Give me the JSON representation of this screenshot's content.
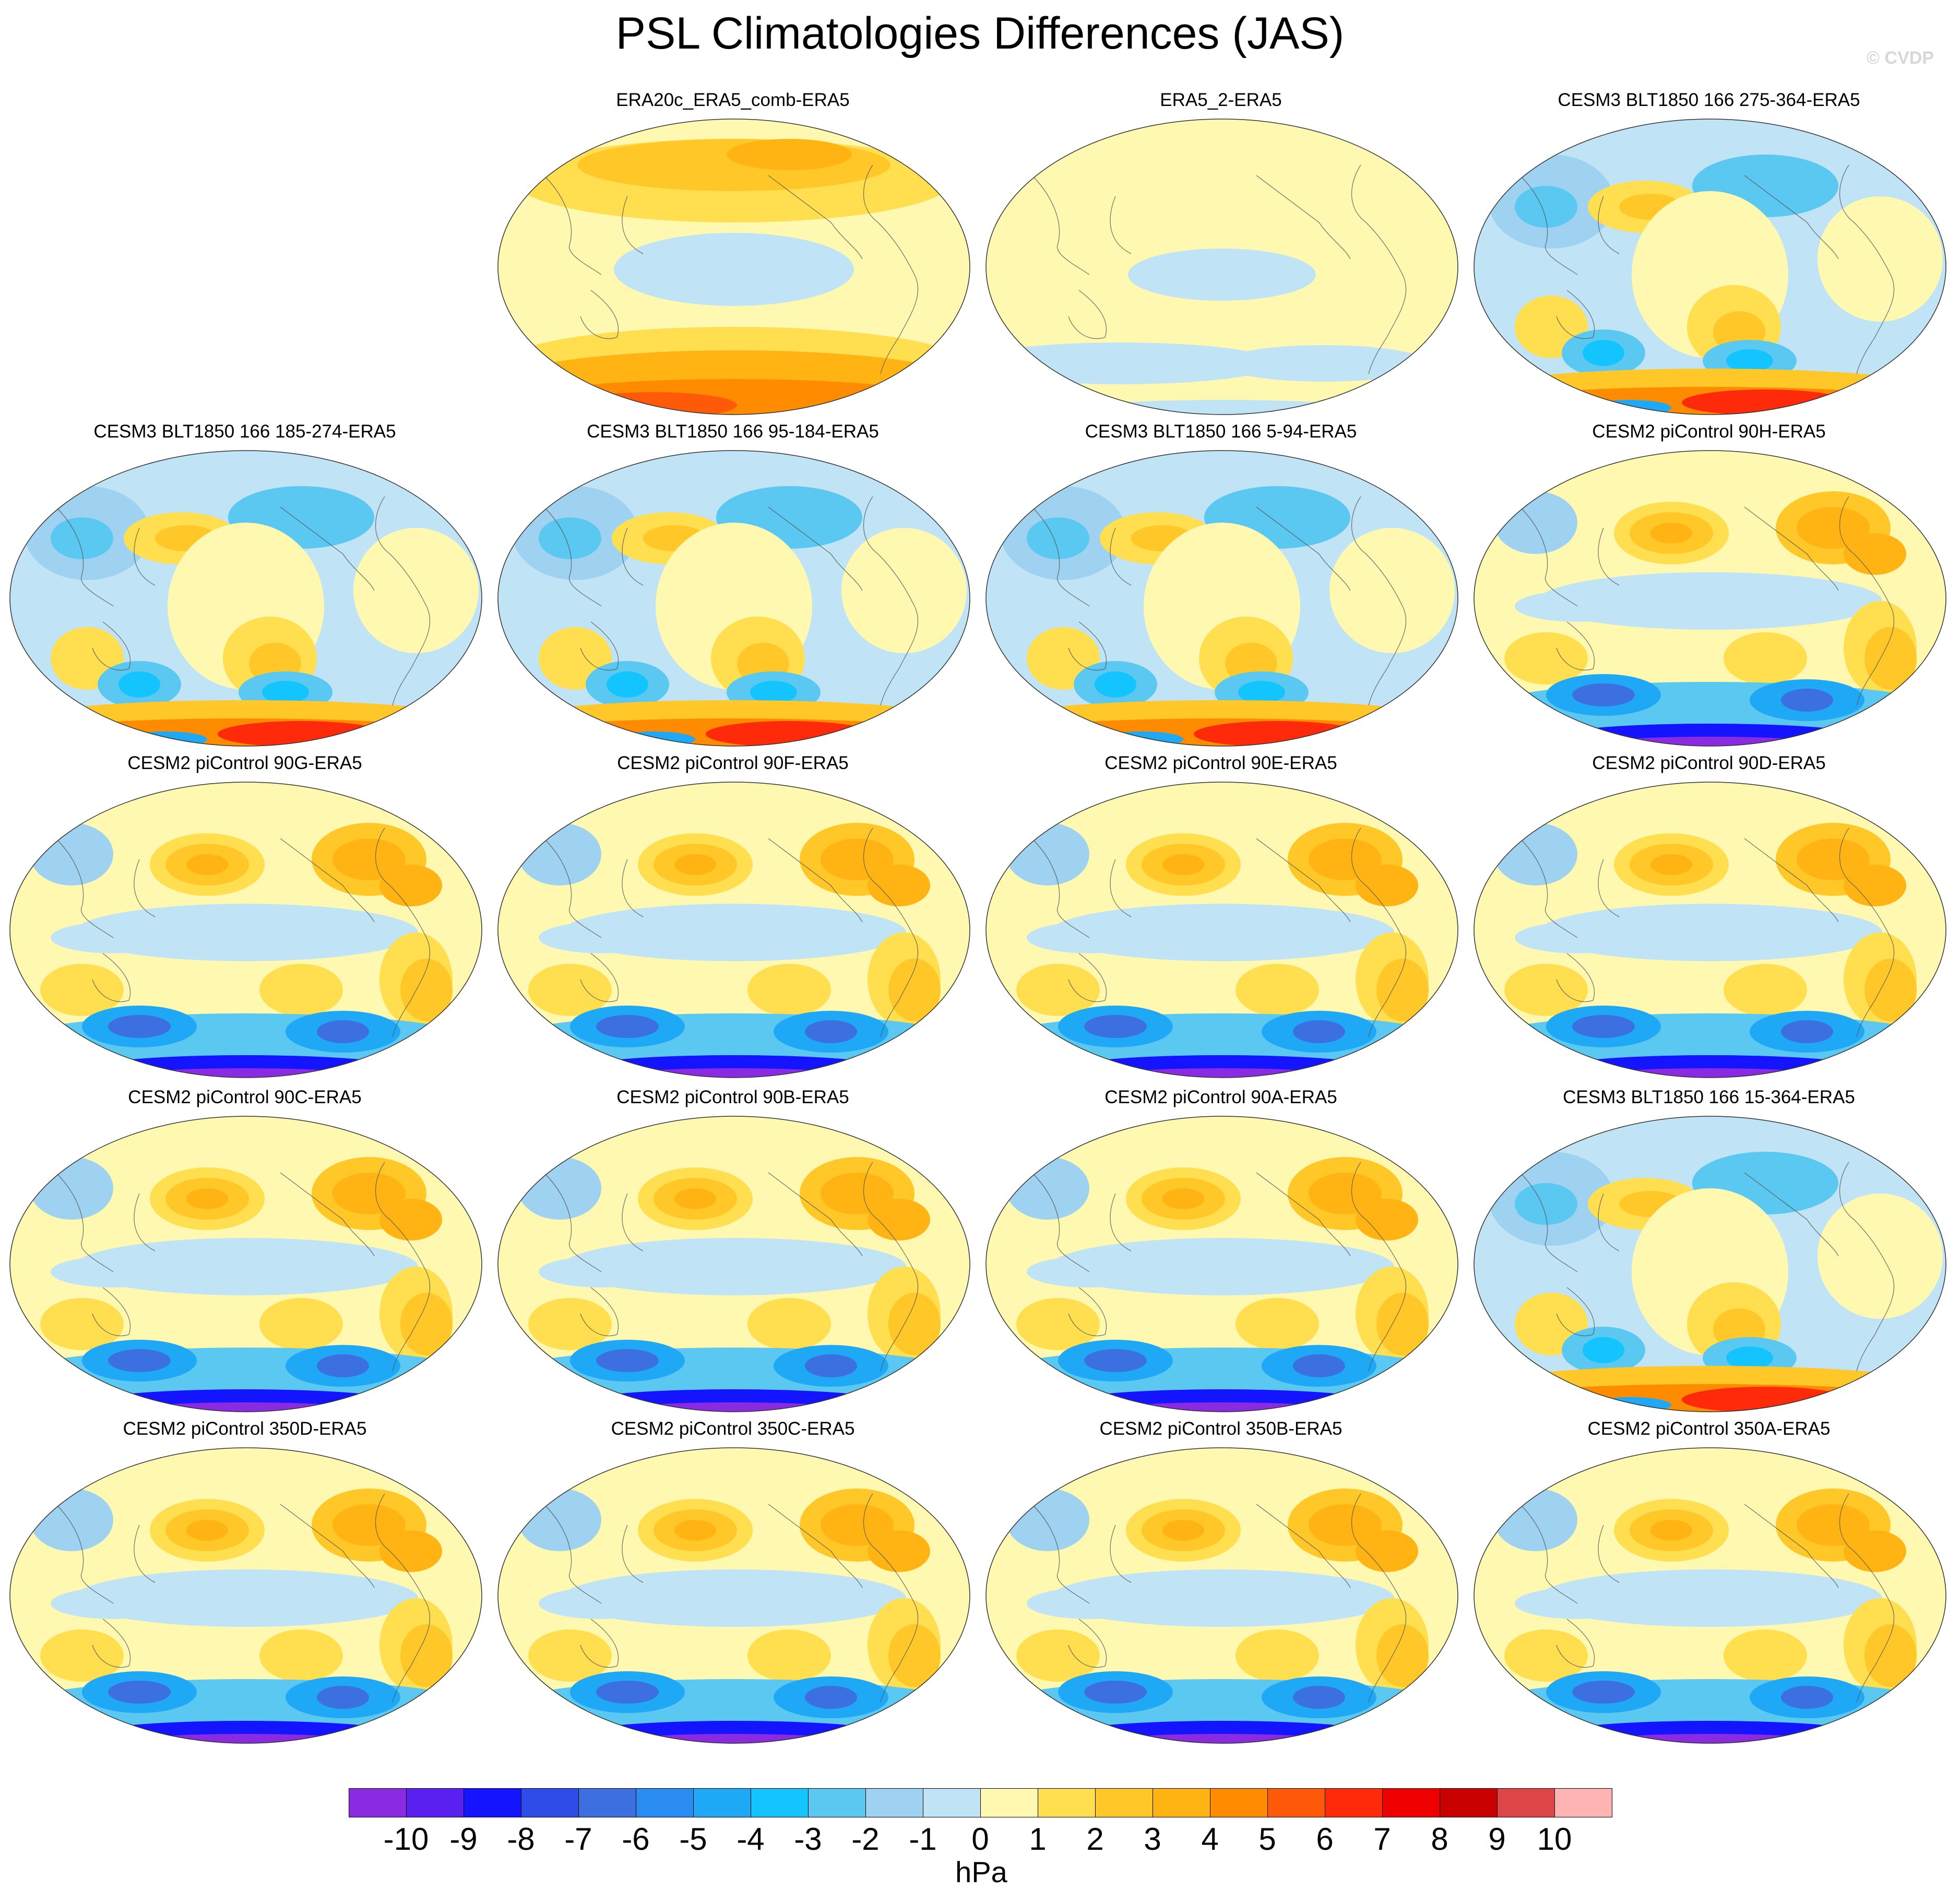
{
  "title": "PSL Climatologies Differences (JAS)",
  "watermark": "© CVDP",
  "units": "hPa",
  "colorbar": {
    "levels": [
      "-10",
      "-9",
      "-8",
      "-7",
      "-6",
      "-5",
      "-4",
      "-3",
      "-2",
      "-1",
      "0",
      "1",
      "2",
      "3",
      "4",
      "5",
      "6",
      "7",
      "8",
      "9",
      "10"
    ],
    "colors": [
      "#8a2be2",
      "#5a20f0",
      "#1414ff",
      "#2e4ce8",
      "#3c70e0",
      "#2a8cf2",
      "#1ea8f5",
      "#14c4ff",
      "#5ac8f0",
      "#9ed2f0",
      "#c0e4f6",
      "#fff8b0",
      "#ffde50",
      "#ffc828",
      "#ffb414",
      "#ff8c00",
      "#ff5a0a",
      "#ff2a0a",
      "#ee0000",
      "#c80000",
      "#dc4646",
      "#ffb4b4"
    ]
  },
  "panels": [
    {
      "title": "ERA20c_ERA5_comb-ERA5",
      "scheme": "era20c"
    },
    {
      "title": "ERA5_2-ERA5",
      "scheme": "era5"
    },
    {
      "title": "CESM3 BLT1850 166 275-364-ERA5",
      "scheme": "cesm3"
    },
    {
      "title": "CESM3 BLT1850 166 185-274-ERA5",
      "scheme": "cesm3"
    },
    {
      "title": "CESM3 BLT1850 166 95-184-ERA5",
      "scheme": "cesm3"
    },
    {
      "title": "CESM3 BLT1850 166 5-94-ERA5",
      "scheme": "cesm3"
    },
    {
      "title": "CESM2 piControl 90H-ERA5",
      "scheme": "cesm2"
    },
    {
      "title": "CESM2 piControl 90G-ERA5",
      "scheme": "cesm2"
    },
    {
      "title": "CESM2 piControl 90F-ERA5",
      "scheme": "cesm2"
    },
    {
      "title": "CESM2 piControl 90E-ERA5",
      "scheme": "cesm2"
    },
    {
      "title": "CESM2 piControl 90D-ERA5",
      "scheme": "cesm2"
    },
    {
      "title": "CESM2 piControl 90C-ERA5",
      "scheme": "cesm2"
    },
    {
      "title": "CESM2 piControl 90B-ERA5",
      "scheme": "cesm2"
    },
    {
      "title": "CESM2 piControl 90A-ERA5",
      "scheme": "cesm2"
    },
    {
      "title": "CESM3 BLT1850 166 15-364-ERA5",
      "scheme": "cesm3"
    },
    {
      "title": "CESM2 piControl 350D-ERA5",
      "scheme": "cesm2"
    },
    {
      "title": "CESM2 piControl 350C-ERA5",
      "scheme": "cesm2"
    },
    {
      "title": "CESM2 piControl 350B-ERA5",
      "scheme": "cesm2"
    },
    {
      "title": "CESM2 piControl 350A-ERA5",
      "scheme": "cesm2"
    }
  ]
}
